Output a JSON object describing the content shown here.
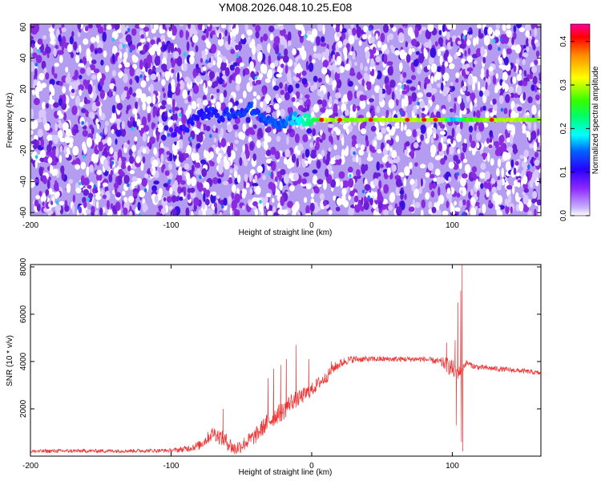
{
  "title": "YM08.2026.048.10.25.E08",
  "chart_data": [
    {
      "type": "heatmap",
      "title": "YM08.2026.048.10.25.E08",
      "xlabel": "Height of straight line (km)",
      "ylabel": "Frequency (Hz)",
      "xlim": [
        -200,
        163
      ],
      "ylim": [
        -62,
        62
      ],
      "xticks": [
        -200,
        -100,
        0,
        100
      ],
      "yticks": [
        -60,
        -40,
        -20,
        0,
        20,
        40,
        60
      ],
      "colorbar": {
        "label": "Normalized spectral amplitude",
        "range": [
          0,
          0.44
        ],
        "ticks": [
          "0.0",
          "0.1",
          "0.2",
          "0.3",
          "0.4"
        ]
      },
      "background_amplitude": [
        0.0,
        0.05
      ],
      "signal_track": {
        "frequency_hz": [
          [
            -100,
            -8
          ],
          [
            -90,
            -6
          ],
          [
            -85,
            0
          ],
          [
            -78,
            3
          ],
          [
            -72,
            5
          ],
          [
            -66,
            1
          ],
          [
            -60,
            4
          ],
          [
            -55,
            3
          ],
          [
            -50,
            6
          ],
          [
            -45,
            8
          ],
          [
            -40,
            4
          ],
          [
            -35,
            1
          ],
          [
            -30,
            0
          ],
          [
            -25,
            -2
          ],
          [
            -22,
            -4
          ],
          [
            -18,
            -1
          ],
          [
            -12,
            1
          ],
          [
            -6,
            0
          ],
          [
            0,
            0
          ],
          [
            163,
            0
          ]
        ],
        "amplitude": [
          [
            -100,
            0.08
          ],
          [
            -85,
            0.11
          ],
          [
            -60,
            0.12
          ],
          [
            -40,
            0.13
          ],
          [
            -20,
            0.14
          ],
          [
            0,
            0.22
          ],
          [
            10,
            0.3
          ],
          [
            30,
            0.28
          ],
          [
            60,
            0.3
          ],
          [
            95,
            0.28
          ],
          [
            100,
            0.15
          ],
          [
            110,
            0.26
          ],
          [
            140,
            0.3
          ],
          [
            163,
            0.28
          ]
        ],
        "peaks_x": [
          7,
          20,
          42,
          68,
          80,
          88,
          128
        ]
      }
    },
    {
      "type": "line",
      "xlabel": "Height of straight line (km)",
      "ylabel": "SNR (10 * v/v)",
      "xlim": [
        -200,
        163
      ],
      "ylim": [
        0,
        8100
      ],
      "xticks": [
        -200,
        -100,
        0,
        100
      ],
      "yticks": [
        2000,
        4000,
        6000,
        8000
      ],
      "color": "#ee3333",
      "envelope": {
        "x": [
          -200,
          -180,
          -150,
          -120,
          -100,
          -90,
          -80,
          -75,
          -70,
          -65,
          -60,
          -55,
          -50,
          -45,
          -40,
          -35,
          -30,
          -25,
          -20,
          -15,
          -10,
          -5,
          0,
          5,
          10,
          15,
          20,
          25,
          30,
          40,
          50,
          60,
          70,
          80,
          85,
          90,
          95,
          100,
          103,
          106,
          108,
          110,
          115,
          120,
          130,
          140,
          150,
          163
        ],
        "y": [
          200,
          220,
          220,
          230,
          240,
          300,
          450,
          700,
          1000,
          800,
          600,
          300,
          450,
          650,
          850,
          1200,
          1500,
          1750,
          1900,
          2300,
          2400,
          2600,
          2800,
          3100,
          3300,
          3700,
          3900,
          4050,
          4100,
          4100,
          4100,
          4100,
          4100,
          4100,
          4050,
          4000,
          3900,
          3700,
          3500,
          3600,
          3800,
          3950,
          3800,
          3750,
          3700,
          3650,
          3600,
          3500
        ]
      },
      "noise_amplitude": {
        "x": [
          -200,
          -100,
          -80,
          -70,
          -60,
          -50,
          -40,
          -30,
          -20,
          -10,
          0,
          10,
          20,
          30,
          40,
          60,
          80,
          90,
          95,
          100,
          110,
          163
        ],
        "y": [
          80,
          80,
          200,
          300,
          350,
          300,
          350,
          400,
          400,
          350,
          300,
          250,
          200,
          150,
          120,
          120,
          120,
          150,
          300,
          400,
          120,
          100
        ]
      },
      "spikes": [
        {
          "x": -63,
          "y": 2000
        },
        {
          "x": -31,
          "y": 3300
        },
        {
          "x": -27,
          "y": 3700
        },
        {
          "x": -22,
          "y": 3850
        },
        {
          "x": -18,
          "y": 4100
        },
        {
          "x": -11,
          "y": 4700
        },
        {
          "x": -2,
          "y": 4100
        },
        {
          "x": 14,
          "y": 4000
        },
        {
          "x": 96,
          "y": 4800
        },
        {
          "x": 102,
          "y": 4900
        },
        {
          "x": 104,
          "y": 6500
        },
        {
          "x": 106,
          "y": 7000
        },
        {
          "x": 107,
          "y": 8100
        },
        {
          "x": 107.5,
          "y": 200
        },
        {
          "x": 106.5,
          "y": 600
        },
        {
          "x": 103,
          "y": 1300
        }
      ]
    }
  ]
}
